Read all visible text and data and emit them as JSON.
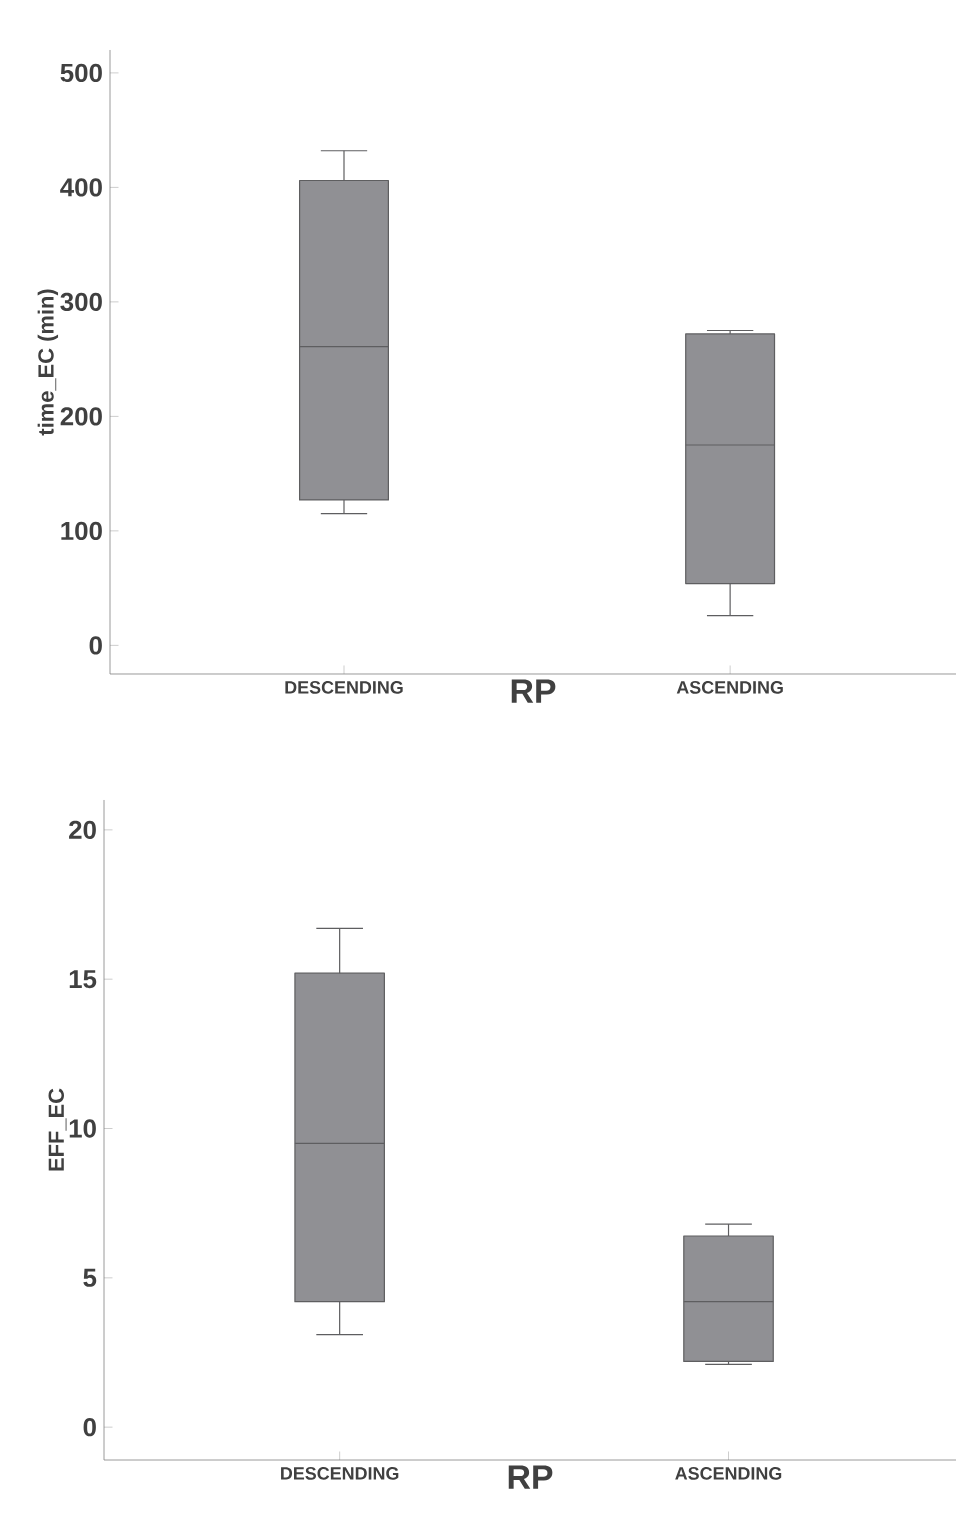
{
  "chart_data": [
    {
      "type": "box",
      "categories": [
        "DESCENDING",
        "ASCENDING"
      ],
      "xlabel": "RP",
      "ylabel": "time_EC (min)",
      "color": "#909094",
      "boxes": [
        {
          "low": 115,
          "q1": 127,
          "median": 261,
          "q3": 406,
          "high": 432
        },
        {
          "low": 26,
          "q1": 54,
          "median": 175,
          "q3": 272,
          "high": 275
        }
      ],
      "ylim": [
        -25,
        520
      ],
      "yticks": [
        0,
        100,
        200,
        300,
        400,
        500
      ]
    },
    {
      "type": "box",
      "categories": [
        "DESCENDING",
        "ASCENDING"
      ],
      "xlabel": "RP",
      "ylabel": "EFF_EC",
      "color": "#909094",
      "boxes": [
        {
          "low": 3.1,
          "q1": 4.2,
          "median": 9.5,
          "q3": 15.2,
          "high": 16.7
        },
        {
          "low": 2.1,
          "q1": 2.2,
          "median": 4.2,
          "q3": 6.4,
          "high": 6.8
        }
      ],
      "ylim": [
        -1.1,
        21
      ],
      "yticks": [
        0,
        5,
        10,
        15,
        20
      ]
    }
  ]
}
